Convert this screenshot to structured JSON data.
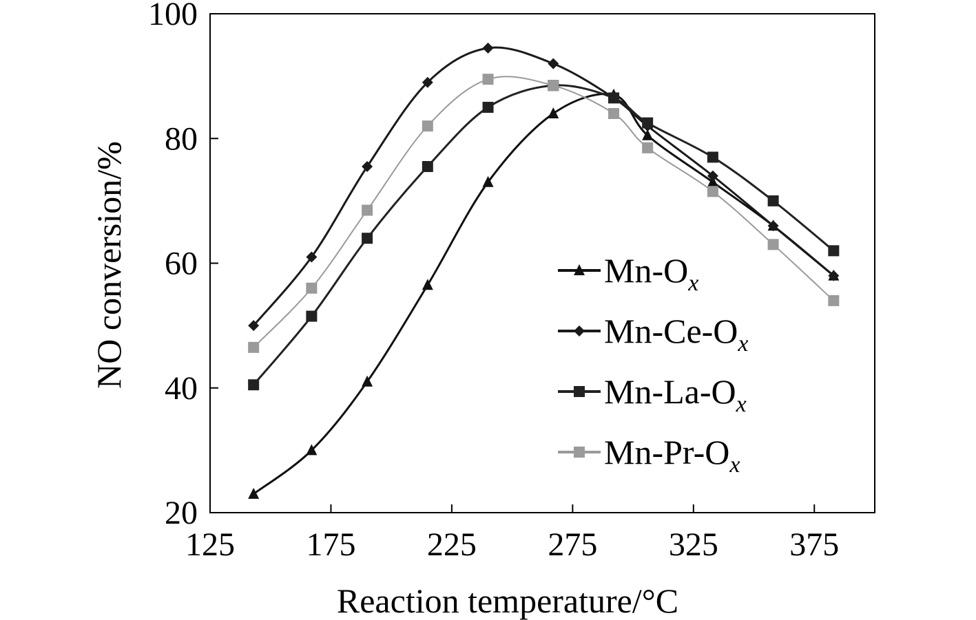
{
  "chart_data": {
    "type": "line",
    "title": "",
    "xlabel": "Reaction temperature/°C",
    "ylabel": "NO conversion/%",
    "xlim": [
      125,
      400
    ],
    "ylim": [
      20,
      100
    ],
    "xticks": [
      125,
      175,
      225,
      275,
      325,
      375
    ],
    "yticks": [
      20,
      40,
      60,
      80,
      100
    ],
    "legend_position": "right",
    "series": [
      {
        "name": "Mn-O",
        "subscript": "x",
        "marker": "triangle",
        "color": "#111111",
        "x": [
          143,
          167,
          190,
          215,
          240,
          267,
          292,
          306,
          333,
          358,
          383
        ],
        "y": [
          23,
          30,
          41,
          56.5,
          73,
          84,
          87,
          80.5,
          73,
          66,
          58
        ]
      },
      {
        "name": "Mn-Ce-O",
        "subscript": "x",
        "marker": "diamond",
        "color": "#1a1a1a",
        "x": [
          143,
          167,
          190,
          215,
          240,
          267,
          292,
          306,
          333,
          358,
          383
        ],
        "y": [
          50,
          61,
          75.5,
          89,
          94.5,
          92,
          86.5,
          82,
          74,
          66,
          58
        ]
      },
      {
        "name": "Mn-La-O",
        "subscript": "x",
        "marker": "square",
        "color": "#222222",
        "x": [
          143,
          167,
          190,
          215,
          240,
          267,
          292,
          306,
          333,
          358,
          383
        ],
        "y": [
          40.5,
          51.5,
          64,
          75.5,
          85,
          88.5,
          86.5,
          82.5,
          77,
          70,
          62
        ]
      },
      {
        "name": "Mn-Pr-O",
        "subscript": "x",
        "marker": "square",
        "color": "#9a9a9a",
        "x": [
          143,
          167,
          190,
          215,
          240,
          267,
          292,
          306,
          333,
          358,
          383
        ],
        "y": [
          46.5,
          56,
          68.5,
          82,
          89.5,
          88.5,
          84,
          78.5,
          71.5,
          63,
          54
        ]
      }
    ]
  }
}
